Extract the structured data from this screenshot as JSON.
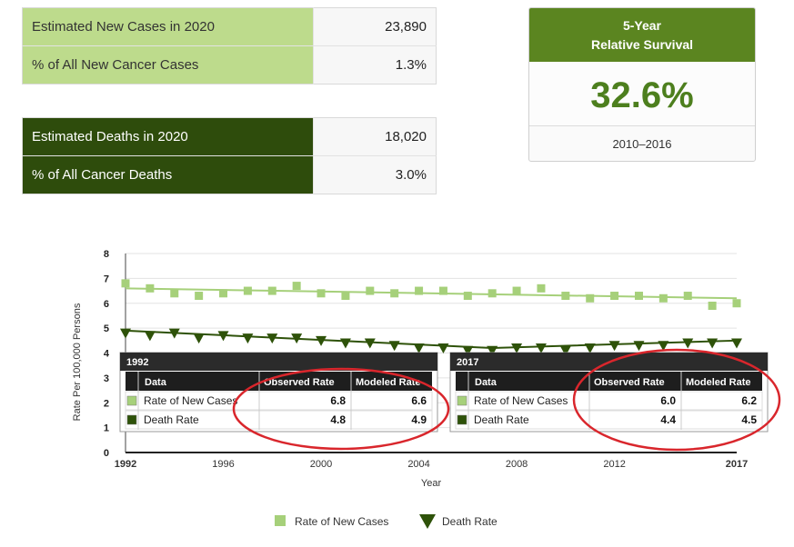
{
  "new_cases_table": {
    "rows": [
      {
        "label": "Estimated New Cases in 2020",
        "value": "23,890"
      },
      {
        "label": "% of All New Cancer Cases",
        "value": "1.3%"
      }
    ]
  },
  "deaths_table": {
    "rows": [
      {
        "label": "Estimated Deaths in 2020",
        "value": "18,020"
      },
      {
        "label": "% of All Cancer Deaths",
        "value": "3.0%"
      }
    ]
  },
  "survival": {
    "title_line1": "5-Year",
    "title_line2": "Relative Survival",
    "value": "32.6%",
    "years": "2010–2016"
  },
  "colors": {
    "new_cases": "#a6d07a",
    "death_rate": "#2e5209",
    "annotation_circle": "#d9262c"
  },
  "chart_data": {
    "type": "scatter",
    "xlabel": "Year",
    "ylabel": "Rate Per 100,000 Persons",
    "xlim": [
      1992,
      2017
    ],
    "ylim": [
      0,
      8
    ],
    "x_ticks": [
      "1992",
      "1996",
      "2000",
      "2004",
      "2008",
      "2012",
      "2017"
    ],
    "y_ticks": [
      "0",
      "1",
      "2",
      "3",
      "4",
      "5",
      "6",
      "7",
      "8"
    ],
    "grid": true,
    "legend": "bottom",
    "x": [
      1992,
      1993,
      1994,
      1995,
      1996,
      1997,
      1998,
      1999,
      2000,
      2001,
      2002,
      2003,
      2004,
      2005,
      2006,
      2007,
      2008,
      2009,
      2010,
      2011,
      2012,
      2013,
      2014,
      2015,
      2016,
      2017
    ],
    "series": [
      {
        "name": "Rate of New Cases",
        "marker": "square",
        "values": [
          6.8,
          6.6,
          6.4,
          6.3,
          6.4,
          6.5,
          6.5,
          6.7,
          6.4,
          6.3,
          6.5,
          6.4,
          6.5,
          6.5,
          6.3,
          6.4,
          6.5,
          6.6,
          6.3,
          6.2,
          6.3,
          6.3,
          6.2,
          6.3,
          5.9,
          6.0
        ],
        "trend": [
          6.6,
          6.2
        ]
      },
      {
        "name": "Death Rate",
        "marker": "triangle-down",
        "values": [
          4.8,
          4.7,
          4.8,
          4.6,
          4.7,
          4.6,
          4.6,
          4.6,
          4.5,
          4.4,
          4.4,
          4.3,
          4.2,
          4.2,
          4.1,
          4.1,
          4.2,
          4.2,
          4.1,
          4.2,
          4.3,
          4.3,
          4.3,
          4.4,
          4.4,
          4.4
        ],
        "trend": [
          4.9,
          4.2,
          4.5
        ]
      }
    ],
    "tooltips": [
      {
        "year": "1992",
        "headers": [
          "Data",
          "Observed Rate",
          "Modeled Rate"
        ],
        "rows": [
          {
            "label": "Rate of New Cases",
            "observed": "6.8",
            "modeled": "6.6"
          },
          {
            "label": "Death Rate",
            "observed": "4.8",
            "modeled": "4.9"
          }
        ]
      },
      {
        "year": "2017",
        "headers": [
          "Data",
          "Observed Rate",
          "Modeled Rate"
        ],
        "rows": [
          {
            "label": "Rate of New Cases",
            "observed": "6.0",
            "modeled": "6.2"
          },
          {
            "label": "Death Rate",
            "observed": "4.4",
            "modeled": "4.5"
          }
        ]
      }
    ]
  }
}
